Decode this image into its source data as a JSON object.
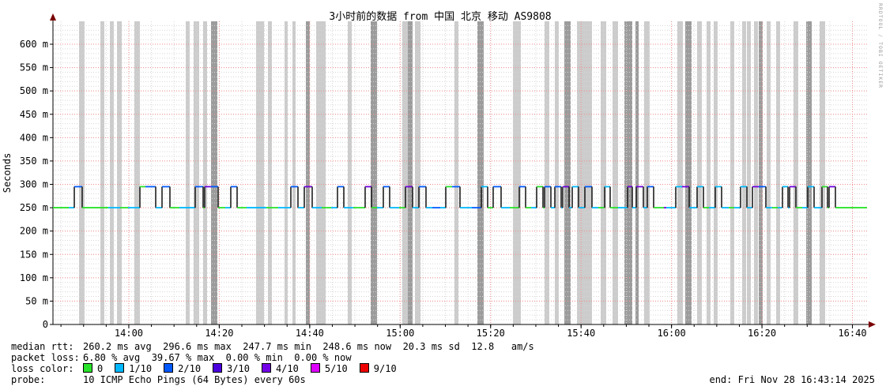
{
  "watermark": "RRDTOOL / TOBI OETIKER",
  "header": {
    "title": "3小时前的数据 from 中国 北京 移动 AS9808"
  },
  "footer": {
    "rows": [
      {
        "label": "median rtt:",
        "value": "260.2 ms avg  296.6 ms max  247.7 ms min  248.6 ms now  20.3 ms sd  12.8   am/s"
      },
      {
        "label": "packet loss:",
        "value": "6.80 % avg  39.67 % max  0.00 % min  0.00 % now"
      }
    ],
    "loss_color_label": "loss color:",
    "probe_label": "probe:",
    "probe_value": "10 ICMP Echo Pings (64 Bytes) every 60s",
    "end_text": "end: Fri Nov 28 16:43:14 2025"
  },
  "loss_legend": [
    {
      "label": "0",
      "color": "#2ae22a"
    },
    {
      "label": "1/10",
      "color": "#00b8ff"
    },
    {
      "label": "2/10",
      "color": "#0059ff"
    },
    {
      "label": "3/10",
      "color": "#4a00dd"
    },
    {
      "label": "4/10",
      "color": "#7300e6"
    },
    {
      "label": "5/10",
      "color": "#dd00ff"
    },
    {
      "label": "9/10",
      "color": "#ee0000"
    }
  ],
  "chart_data": {
    "type": "line",
    "subtype": "smokeping-latency",
    "title": "3小时前的数据 from 中国 北京 移动 AS9808",
    "ylabel": "Seconds",
    "xlabel": "",
    "time_start": "13:43:14",
    "time_end": "16:43:14",
    "x_total_minutes": 180,
    "x_ticks": [
      "14:00",
      "14:20",
      "14:40",
      "15:00",
      "15:20",
      "15:40",
      "16:00",
      "16:20",
      "16:40"
    ],
    "x_tick_first_offset_min": 16.77,
    "x_tick_step_min": 20,
    "x_minor_step_min": 5,
    "x_minor_first_offset_min": 1.77,
    "y_ticks": [
      {
        "ms": 0,
        "label": "0"
      },
      {
        "ms": 50,
        "label": "50 m"
      },
      {
        "ms": 100,
        "label": "100 m"
      },
      {
        "ms": 150,
        "label": "150 m"
      },
      {
        "ms": 200,
        "label": "200 m"
      },
      {
        "ms": 250,
        "label": "250 m"
      },
      {
        "ms": 300,
        "label": "300 m"
      },
      {
        "ms": 350,
        "label": "350 m"
      },
      {
        "ms": 400,
        "label": "400 m"
      },
      {
        "ms": 450,
        "label": "450 m"
      },
      {
        "ms": 500,
        "label": "500 m"
      },
      {
        "ms": 550,
        "label": "550 m"
      },
      {
        "ms": 600,
        "label": "600 m"
      }
    ],
    "ylim_ms": [
      0,
      649
    ],
    "y_minor_step_ms": 10,
    "grid": true,
    "stats": {
      "median_rtt_ms": {
        "avg": 260.2,
        "max": 296.6,
        "min": 247.7,
        "now": 248.6,
        "sd": 20.3
      },
      "packet_loss_pct": {
        "avg": 6.8,
        "max": 39.67,
        "min": 0.0,
        "now": 0.0
      }
    },
    "baseline_ms": 250,
    "pulse_ms": 295,
    "x_unit_note": "x offsets in px across plot, 0..1030 px == 180 min",
    "colors": {
      "g": "#2ae22a",
      "c": "#00b8ff",
      "b": "#0059ff",
      "p": "#6f00dd",
      "connector": "#1f1f1f",
      "band_light": "#cccccc",
      "band_dark": "#9c9c9c",
      "grid_major": "#f28a8a",
      "grid_minor": "#d6d6d6",
      "axis": "#000000",
      "arrow": "#7a0000"
    },
    "loss_bands": [
      [
        33,
        7,
        0
      ],
      [
        60,
        5,
        0
      ],
      [
        72,
        5,
        0
      ],
      [
        81,
        6,
        0
      ],
      [
        103,
        7,
        0
      ],
      [
        168,
        5,
        0
      ],
      [
        178,
        7,
        0
      ],
      [
        190,
        5,
        0
      ],
      [
        200,
        8,
        1
      ],
      [
        257,
        10,
        0
      ],
      [
        272,
        5,
        0
      ],
      [
        293,
        4,
        0
      ],
      [
        303,
        4,
        0
      ],
      [
        320,
        5,
        1
      ],
      [
        333,
        12,
        0
      ],
      [
        373,
        5,
        0
      ],
      [
        402,
        8,
        1
      ],
      [
        442,
        7,
        0
      ],
      [
        449,
        6,
        1
      ],
      [
        458,
        7,
        0
      ],
      [
        508,
        5,
        0
      ],
      [
        537,
        8,
        1
      ],
      [
        582,
        10,
        0
      ],
      [
        622,
        6,
        0
      ],
      [
        635,
        5,
        0
      ],
      [
        647,
        8,
        1
      ],
      [
        663,
        19,
        0
      ],
      [
        693,
        7,
        0
      ],
      [
        708,
        7,
        0
      ],
      [
        723,
        10,
        1
      ],
      [
        737,
        4,
        1
      ],
      [
        748,
        7,
        0
      ],
      [
        790,
        7,
        0
      ],
      [
        800,
        8,
        1
      ],
      [
        815,
        6,
        0
      ],
      [
        827,
        5,
        0
      ],
      [
        836,
        5,
        0
      ],
      [
        857,
        5,
        0
      ],
      [
        872,
        5,
        0
      ],
      [
        878,
        5,
        0
      ],
      [
        887,
        5,
        0
      ],
      [
        893,
        5,
        1
      ],
      [
        903,
        5,
        0
      ],
      [
        915,
        5,
        0
      ],
      [
        937,
        6,
        0
      ],
      [
        953,
        7,
        1
      ],
      [
        970,
        7,
        0
      ]
    ],
    "pulses": [
      [
        27,
        37,
        "b"
      ],
      [
        110,
        117,
        "g"
      ],
      [
        117,
        130,
        "b"
      ],
      [
        138,
        148,
        "b"
      ],
      [
        180,
        190,
        "b"
      ],
      [
        192,
        200,
        "p"
      ],
      [
        200,
        209,
        "b"
      ],
      [
        225,
        233,
        "b"
      ],
      [
        301,
        310,
        "b"
      ],
      [
        318,
        328,
        "p"
      ],
      [
        360,
        368,
        "b"
      ],
      [
        395,
        403,
        "p"
      ],
      [
        418,
        426,
        "b"
      ],
      [
        446,
        455,
        "p"
      ],
      [
        463,
        472,
        "b"
      ],
      [
        497,
        505,
        "g"
      ],
      [
        505,
        515,
        "b"
      ],
      [
        542,
        550,
        "c"
      ],
      [
        557,
        567,
        "b"
      ],
      [
        590,
        598,
        "b"
      ],
      [
        612,
        620,
        "g"
      ],
      [
        622,
        630,
        "b"
      ],
      [
        635,
        643,
        "b"
      ],
      [
        645,
        653,
        "p"
      ],
      [
        657,
        665,
        "c"
      ],
      [
        673,
        682,
        "b"
      ],
      [
        698,
        705,
        "c"
      ],
      [
        727,
        733,
        "p"
      ],
      [
        738,
        747,
        "p"
      ],
      [
        752,
        760,
        "b"
      ],
      [
        788,
        796,
        "c"
      ],
      [
        796,
        805,
        "p"
      ],
      [
        815,
        823,
        "c"
      ],
      [
        838,
        846,
        "c"
      ],
      [
        870,
        878,
        "c"
      ],
      [
        885,
        893,
        "p"
      ],
      [
        893,
        902,
        "b"
      ],
      [
        923,
        930,
        "c"
      ],
      [
        932,
        940,
        "p"
      ],
      [
        955,
        963,
        "c"
      ],
      [
        973,
        980,
        "g"
      ],
      [
        982,
        990,
        "p"
      ]
    ],
    "baseline_colors": [
      [
        20,
        27,
        "c"
      ],
      [
        70,
        85,
        "c"
      ],
      [
        95,
        110,
        "c"
      ],
      [
        130,
        138,
        "c"
      ],
      [
        160,
        180,
        "c"
      ],
      [
        218,
        225,
        "c"
      ],
      [
        245,
        270,
        "c"
      ],
      [
        285,
        301,
        "c"
      ],
      [
        310,
        318,
        "c"
      ],
      [
        328,
        340,
        "c"
      ],
      [
        352,
        360,
        "c"
      ],
      [
        368,
        380,
        "c"
      ],
      [
        410,
        418,
        "c"
      ],
      [
        426,
        438,
        "c"
      ],
      [
        455,
        463,
        "c"
      ],
      [
        472,
        480,
        "c"
      ],
      [
        480,
        490,
        "b"
      ],
      [
        490,
        497,
        "c"
      ],
      [
        515,
        530,
        "c"
      ],
      [
        530,
        542,
        "b"
      ],
      [
        567,
        578,
        "c"
      ],
      [
        605,
        612,
        "c"
      ],
      [
        630,
        635,
        "c"
      ],
      [
        643,
        645,
        "c"
      ],
      [
        653,
        657,
        "c"
      ],
      [
        665,
        673,
        "c"
      ],
      [
        682,
        690,
        "c"
      ],
      [
        715,
        727,
        "c"
      ],
      [
        733,
        738,
        "c"
      ],
      [
        747,
        752,
        "c"
      ],
      [
        773,
        776,
        "p"
      ],
      [
        776,
        788,
        "c"
      ],
      [
        805,
        815,
        "c"
      ],
      [
        830,
        838,
        "c"
      ],
      [
        846,
        855,
        "c"
      ],
      [
        862,
        870,
        "c"
      ],
      [
        878,
        885,
        "c"
      ],
      [
        902,
        910,
        "c"
      ],
      [
        917,
        923,
        "c"
      ],
      [
        930,
        932,
        "c"
      ],
      [
        948,
        955,
        "c"
      ],
      [
        963,
        973,
        "c"
      ]
    ]
  }
}
